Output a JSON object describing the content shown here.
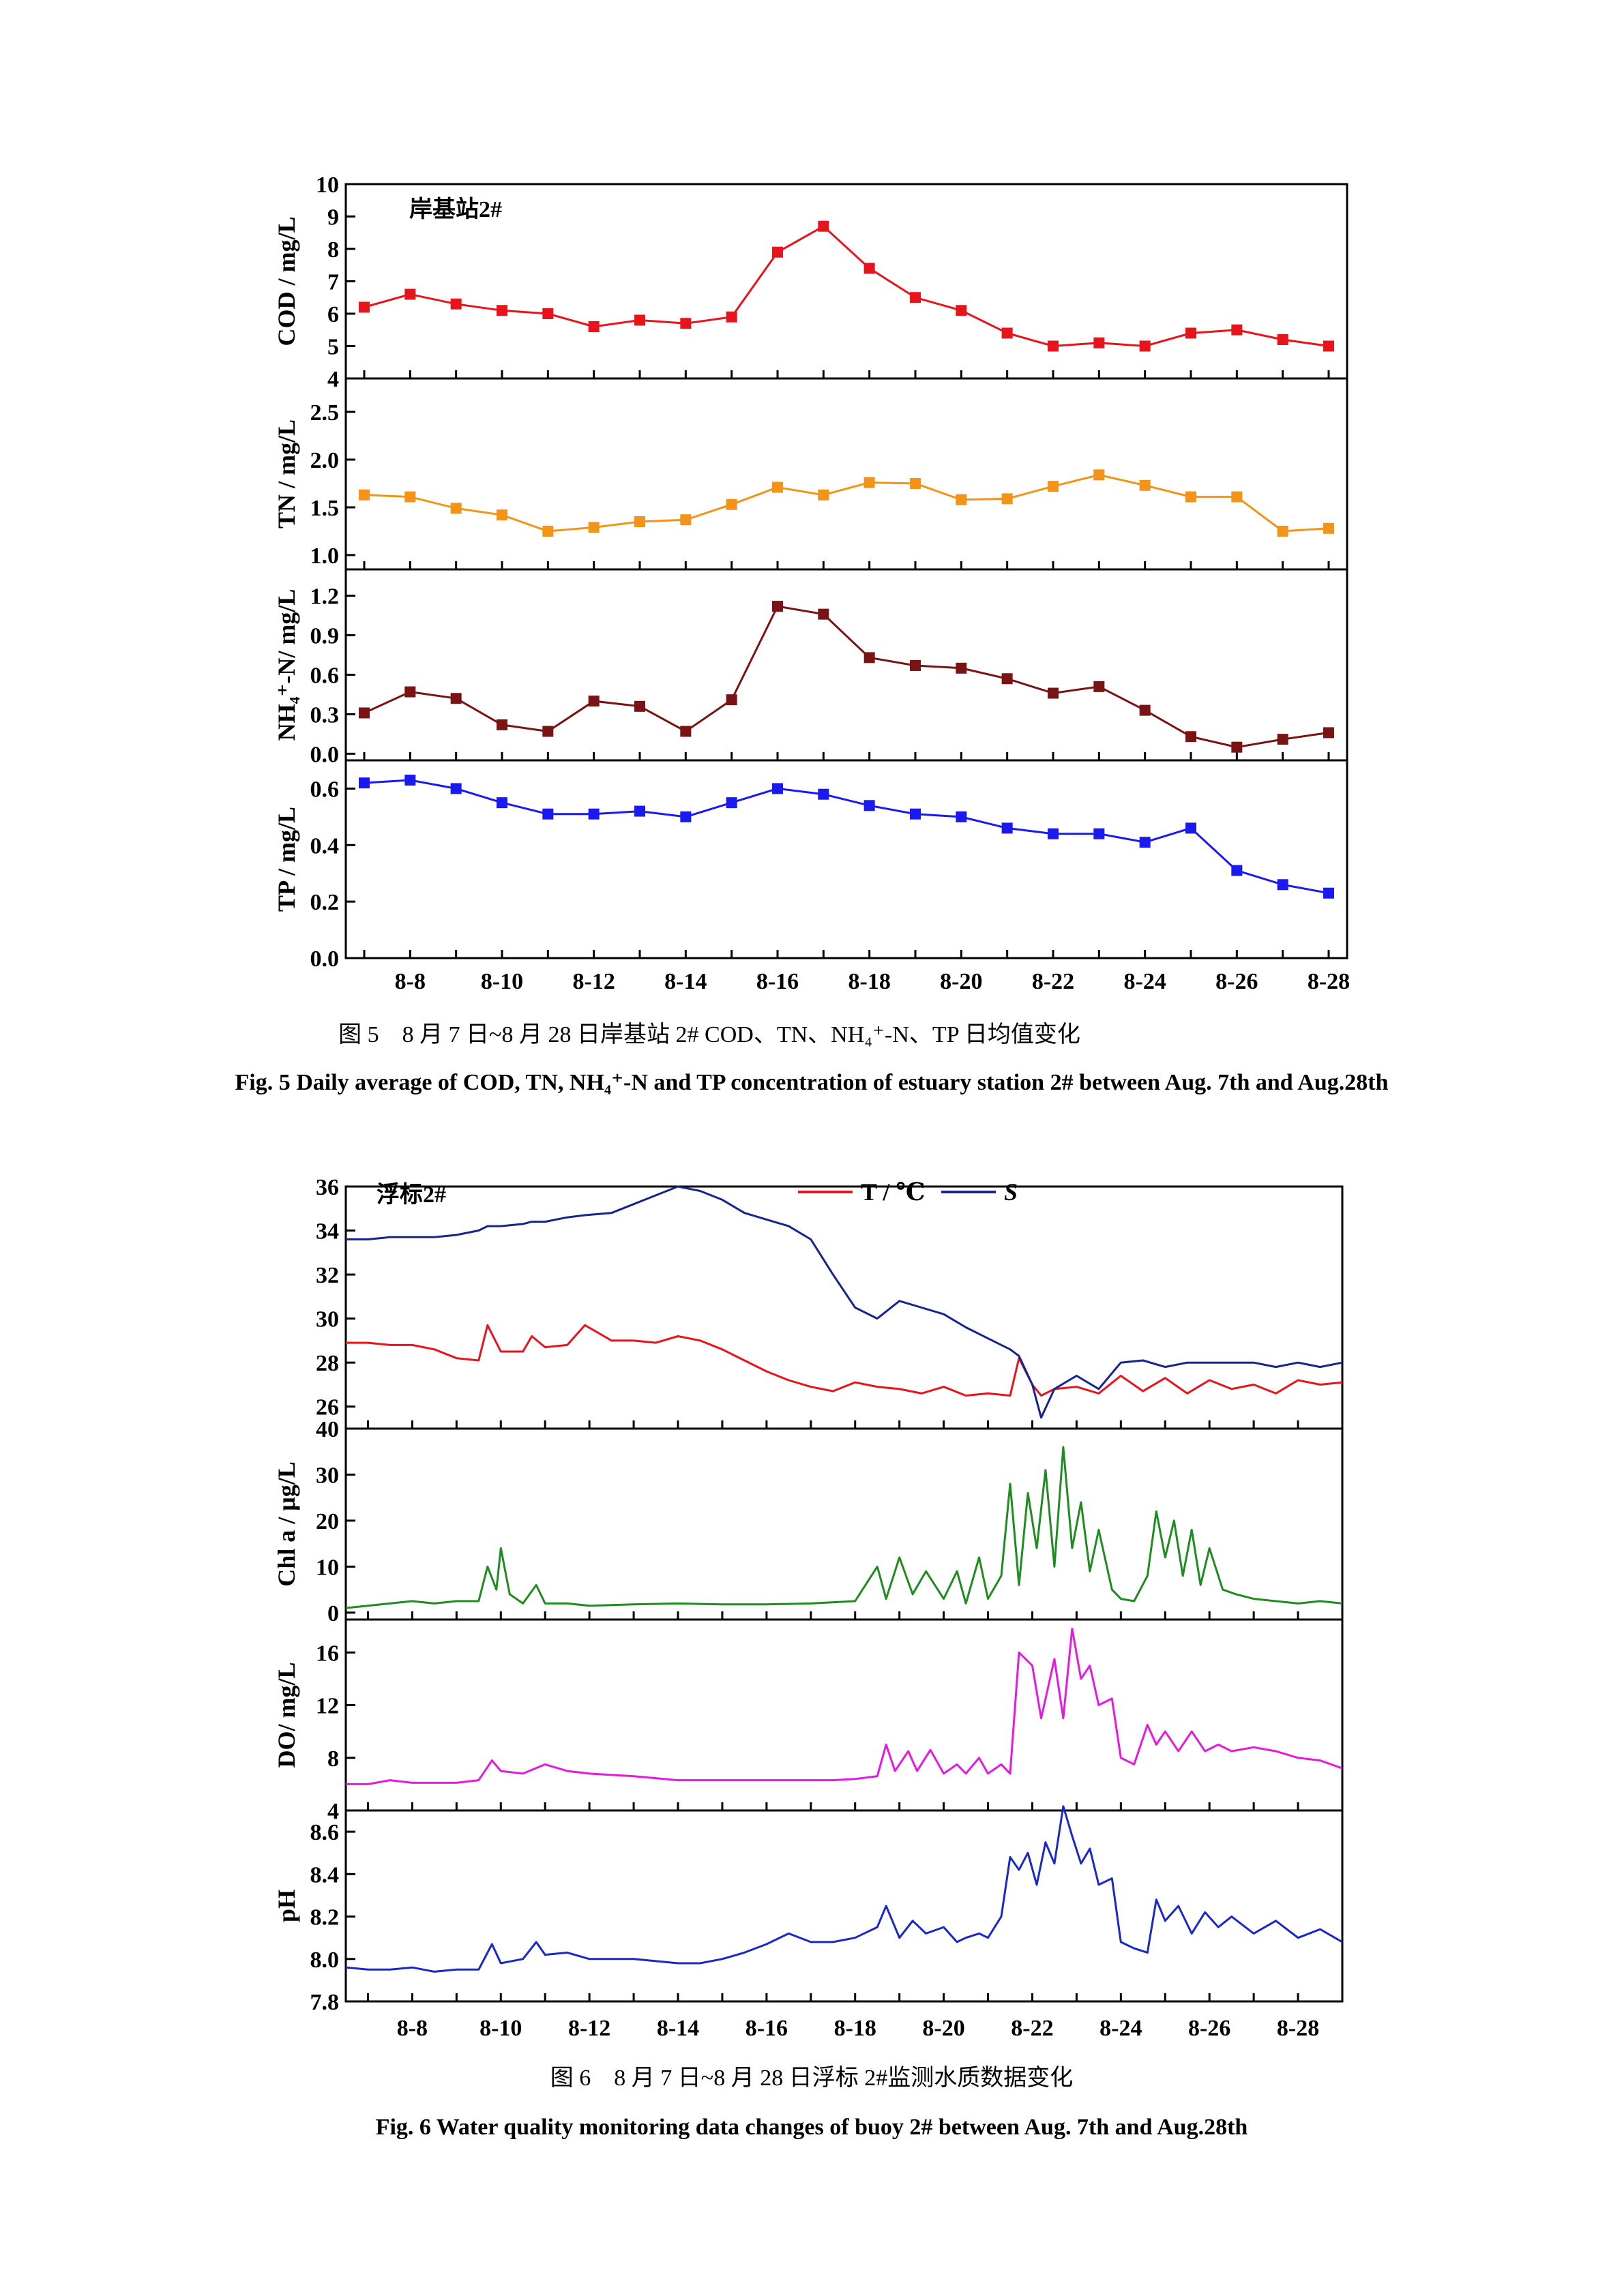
{
  "figure5": {
    "station_label": "岸基站2#",
    "caption_cn": "图 5　8 月 7 日~8 月 28 日岸基站 2# COD、TN、NH₄⁺-N、TP 日均值变化",
    "caption_en": "Fig. 5 Daily average of COD, TN, NH₄⁺-N and TP concentration of estuary station 2# between Aug. 7th and Aug.28th",
    "x_tick_labels": [
      "8-8",
      "8-10",
      "8-12",
      "8-14",
      "8-16",
      "8-18",
      "8-20",
      "8-22",
      "8-24",
      "8-26",
      "8-28"
    ]
  },
  "figure6": {
    "buoy_label": "浮标2#",
    "legend_T": "T / ℃",
    "legend_S": "S",
    "caption_cn": "图 6　8 月 7 日~8 月 28 日浮标 2#监测水质数据变化",
    "caption_en": "Fig. 6 Water quality monitoring data changes of buoy 2# between Aug. 7th and Aug.28th",
    "x_tick_labels": [
      "8-8",
      "8-10",
      "8-12",
      "8-14",
      "8-16",
      "8-18",
      "8-20",
      "8-22",
      "8-24",
      "8-26",
      "8-28"
    ]
  },
  "chart_data": [
    {
      "type": "line",
      "id": "fig5-cod",
      "x": [
        "8-7",
        "8-8",
        "8-9",
        "8-10",
        "8-11",
        "8-12",
        "8-13",
        "8-14",
        "8-15",
        "8-16",
        "8-17",
        "8-18",
        "8-19",
        "8-20",
        "8-21",
        "8-22",
        "8-23",
        "8-24",
        "8-25",
        "8-26",
        "8-27",
        "8-28"
      ],
      "series": [
        {
          "values": [
            6.2,
            6.6,
            6.3,
            6.1,
            6.0,
            5.6,
            5.8,
            5.7,
            5.9,
            7.9,
            8.7,
            7.4,
            6.5,
            6.1,
            5.4,
            5.0,
            5.1,
            5.0,
            5.4,
            5.5,
            5.2,
            5.0
          ],
          "color": "#e8141c"
        }
      ],
      "ylabel": "COD / mg/L",
      "ylim": [
        4,
        10
      ],
      "yticks": [
        4,
        5,
        6,
        7,
        8,
        9,
        10
      ],
      "ytick_labels": [
        "4",
        "5",
        "6",
        "7",
        "8",
        "9",
        "10"
      ]
    },
    {
      "type": "line",
      "id": "fig5-tn",
      "x": [
        "8-7",
        "8-8",
        "8-9",
        "8-10",
        "8-11",
        "8-12",
        "8-13",
        "8-14",
        "8-15",
        "8-16",
        "8-17",
        "8-18",
        "8-19",
        "8-20",
        "8-21",
        "8-22",
        "8-23",
        "8-24",
        "8-25",
        "8-26",
        "8-27",
        "8-28"
      ],
      "series": [
        {
          "values": [
            1.63,
            1.61,
            1.49,
            1.42,
            1.25,
            1.29,
            1.35,
            1.37,
            1.53,
            1.71,
            1.63,
            1.76,
            1.75,
            1.58,
            1.59,
            1.72,
            1.84,
            1.73,
            1.61,
            1.61,
            1.25,
            1.28
          ],
          "color": "#f39318"
        }
      ],
      "ylabel": "TN / mg/L",
      "ylim": [
        0.85,
        2.85
      ],
      "yticks": [
        1.0,
        1.5,
        2.0,
        2.5
      ],
      "ytick_labels": [
        "1.0",
        "1.5",
        "2.0",
        "2.5"
      ]
    },
    {
      "type": "line",
      "id": "fig5-nh4",
      "x": [
        "8-7",
        "8-8",
        "8-9",
        "8-10",
        "8-11",
        "8-12",
        "8-13",
        "8-14",
        "8-15",
        "8-16",
        "8-17",
        "8-18",
        "8-19",
        "8-20",
        "8-21",
        "8-22",
        "8-23",
        "8-24",
        "8-25",
        "8-26",
        "8-27",
        "8-28"
      ],
      "series": [
        {
          "values": [
            0.31,
            0.47,
            0.42,
            0.22,
            0.17,
            0.4,
            0.36,
            0.17,
            0.41,
            1.12,
            1.06,
            0.73,
            0.67,
            0.65,
            0.57,
            0.46,
            0.51,
            0.33,
            0.13,
            0.05,
            0.11,
            0.16
          ],
          "color": "#7a1414"
        }
      ],
      "ylabel": "NH₄⁺-N/ mg/L",
      "ylim": [
        -0.05,
        1.4
      ],
      "yticks": [
        0.0,
        0.3,
        0.6,
        0.9,
        1.2
      ],
      "ytick_labels": [
        "0.0",
        "0.3",
        "0.6",
        "0.9",
        "1.2"
      ]
    },
    {
      "type": "line",
      "id": "fig5-tp",
      "x": [
        "8-7",
        "8-8",
        "8-9",
        "8-10",
        "8-11",
        "8-12",
        "8-13",
        "8-14",
        "8-15",
        "8-16",
        "8-17",
        "8-18",
        "8-19",
        "8-20",
        "8-21",
        "8-22",
        "8-23",
        "8-24",
        "8-25",
        "8-26",
        "8-27",
        "8-28"
      ],
      "series": [
        {
          "values": [
            0.62,
            0.63,
            0.6,
            0.55,
            0.51,
            0.51,
            0.52,
            0.5,
            0.55,
            0.6,
            0.58,
            0.54,
            0.51,
            0.5,
            0.46,
            0.44,
            0.44,
            0.41,
            0.46,
            0.31,
            0.26,
            0.23
          ],
          "color": "#1a1af0"
        }
      ],
      "ylabel": "TP / mg/L",
      "ylim": [
        0.0,
        0.7
      ],
      "yticks": [
        0.0,
        0.2,
        0.4,
        0.6
      ],
      "ytick_labels": [
        "0.0",
        "0.2",
        "0.4",
        "0.6"
      ]
    },
    {
      "type": "line",
      "id": "fig6-ts",
      "x": [
        6.5,
        7.0,
        7.5,
        8.0,
        8.5,
        9.0,
        9.5,
        9.7,
        10.0,
        10.5,
        10.7,
        11.0,
        11.5,
        11.9,
        12.5,
        13.0,
        13.5,
        14.0,
        14.5,
        15.0,
        15.5,
        16.0,
        16.5,
        17.0,
        17.5,
        18.0,
        18.5,
        19.0,
        19.5,
        20.0,
        20.5,
        21.0,
        21.5,
        21.7,
        22.0,
        22.2,
        22.5,
        23.0,
        23.5,
        24.0,
        24.5,
        25.0,
        25.5,
        26.0,
        26.5,
        27.0,
        27.5,
        28.0,
        28.5,
        29.0
      ],
      "series": [
        {
          "name": "T / ℃",
          "values": [
            28.9,
            28.9,
            28.8,
            28.8,
            28.6,
            28.2,
            28.1,
            29.7,
            28.5,
            28.5,
            29.2,
            28.7,
            28.8,
            29.7,
            29.0,
            29.0,
            28.9,
            29.2,
            29.0,
            28.6,
            28.1,
            27.6,
            27.2,
            26.9,
            26.7,
            27.1,
            26.9,
            26.8,
            26.6,
            26.9,
            26.5,
            26.6,
            26.5,
            28.2,
            27.0,
            26.5,
            26.8,
            26.9,
            26.6,
            27.4,
            26.7,
            27.3,
            26.6,
            27.2,
            26.8,
            27.0,
            26.6,
            27.2,
            27.0,
            27.1
          ],
          "color": "#e8141c"
        },
        {
          "name": "S",
          "values": [
            33.6,
            33.6,
            33.7,
            33.7,
            33.7,
            33.8,
            34.0,
            34.2,
            34.2,
            34.3,
            34.4,
            34.4,
            34.6,
            34.7,
            34.8,
            35.2,
            35.6,
            36.0,
            35.8,
            35.4,
            34.8,
            34.5,
            34.2,
            33.6,
            32.0,
            30.5,
            30.0,
            30.8,
            30.5,
            30.2,
            29.6,
            29.1,
            28.6,
            28.3,
            27.0,
            25.5,
            26.8,
            27.4,
            26.8,
            28.0,
            28.1,
            27.8,
            28.0,
            28.0,
            28.0,
            28.0,
            27.8,
            28.0,
            27.8,
            28.0
          ],
          "color": "#17238f"
        }
      ],
      "ylim": [
        25,
        36
      ],
      "yticks": [
        26,
        28,
        30,
        32,
        34,
        36
      ],
      "ytick_labels": [
        "26",
        "28",
        "30",
        "32",
        "34",
        "36"
      ]
    },
    {
      "type": "line",
      "id": "fig6-chla",
      "x": [
        6.5,
        7.0,
        7.5,
        8.0,
        8.5,
        9.0,
        9.5,
        9.7,
        9.9,
        10.0,
        10.2,
        10.5,
        10.8,
        11.0,
        11.5,
        12.0,
        13.0,
        14.0,
        15.0,
        16.0,
        17.0,
        18.0,
        18.5,
        18.7,
        19.0,
        19.3,
        19.6,
        20.0,
        20.3,
        20.5,
        20.8,
        21.0,
        21.3,
        21.5,
        21.7,
        21.9,
        22.1,
        22.3,
        22.5,
        22.7,
        22.9,
        23.1,
        23.3,
        23.5,
        23.8,
        24.0,
        24.3,
        24.6,
        24.8,
        25.0,
        25.2,
        25.4,
        25.6,
        25.8,
        26.0,
        26.3,
        26.6,
        27.0,
        27.5,
        28.0,
        28.5,
        29.0
      ],
      "series": [
        {
          "name": "Chl a",
          "values": [
            1.0,
            1.5,
            2.0,
            2.5,
            2.0,
            2.5,
            2.5,
            10.0,
            5.0,
            14.0,
            4.0,
            2.0,
            6.0,
            2.0,
            2.0,
            1.5,
            1.8,
            2.0,
            1.8,
            1.8,
            2.0,
            2.5,
            10.0,
            3.0,
            12.0,
            4.0,
            9.0,
            3.0,
            9.0,
            2.0,
            12.0,
            3.0,
            8.0,
            28.0,
            6.0,
            26.0,
            14.0,
            31.0,
            10.0,
            36.0,
            14.0,
            24.0,
            9.0,
            18.0,
            5.0,
            3.0,
            2.5,
            8.0,
            22.0,
            12.0,
            20.0,
            8.0,
            18.0,
            6.0,
            14.0,
            5.0,
            4.0,
            3.0,
            2.5,
            2.0,
            2.5,
            2.0
          ],
          "color": "#1e8c1e"
        }
      ],
      "ylabel": "Chl a / μg/L",
      "ylim": [
        -1.5,
        40
      ],
      "yticks": [
        0,
        10,
        20,
        30,
        40
      ],
      "ytick_labels": [
        "0",
        "10",
        "20",
        "30",
        "40"
      ]
    },
    {
      "type": "line",
      "id": "fig6-do",
      "x": [
        6.5,
        7.0,
        7.5,
        8.0,
        8.5,
        9.0,
        9.5,
        9.8,
        10.0,
        10.5,
        11.0,
        11.5,
        12.0,
        13.0,
        14.0,
        15.0,
        16.0,
        17.0,
        17.5,
        18.0,
        18.5,
        18.7,
        18.9,
        19.2,
        19.4,
        19.7,
        20.0,
        20.3,
        20.5,
        20.8,
        21.0,
        21.3,
        21.5,
        21.7,
        22.0,
        22.2,
        22.5,
        22.7,
        22.9,
        23.1,
        23.3,
        23.5,
        23.8,
        24.0,
        24.3,
        24.6,
        24.8,
        25.0,
        25.3,
        25.6,
        25.9,
        26.2,
        26.5,
        27.0,
        27.5,
        28.0,
        28.5,
        29.0
      ],
      "series": [
        {
          "name": "DO",
          "values": [
            6.0,
            6.0,
            6.3,
            6.1,
            6.1,
            6.1,
            6.3,
            7.8,
            7.0,
            6.8,
            7.5,
            7.0,
            6.8,
            6.6,
            6.3,
            6.3,
            6.3,
            6.3,
            6.3,
            6.4,
            6.6,
            9.0,
            7.0,
            8.5,
            7.0,
            8.6,
            6.8,
            7.5,
            6.8,
            8.0,
            6.8,
            7.5,
            6.8,
            16.0,
            15.0,
            11.0,
            15.5,
            11.0,
            17.8,
            14.0,
            15.0,
            12.0,
            12.5,
            8.0,
            7.5,
            10.5,
            9.0,
            10.0,
            8.5,
            10.0,
            8.5,
            9.0,
            8.5,
            8.8,
            8.5,
            8.0,
            7.8,
            7.2
          ],
          "color": "#e619e0"
        }
      ],
      "ylabel": "DO/ mg/L",
      "ylim": [
        4,
        18.5
      ],
      "yticks": [
        4,
        8,
        12,
        16
      ],
      "ytick_labels": [
        "4",
        "8",
        "12",
        "16"
      ]
    },
    {
      "type": "line",
      "id": "fig6-ph",
      "x": [
        6.5,
        7.0,
        7.5,
        8.0,
        8.5,
        9.0,
        9.5,
        9.8,
        10.0,
        10.5,
        10.8,
        11.0,
        11.5,
        12.0,
        13.0,
        14.0,
        14.5,
        15.0,
        15.5,
        16.0,
        16.5,
        17.0,
        17.5,
        18.0,
        18.5,
        18.7,
        19.0,
        19.3,
        19.6,
        20.0,
        20.3,
        20.5,
        20.8,
        21.0,
        21.3,
        21.5,
        21.7,
        21.9,
        22.1,
        22.3,
        22.5,
        22.7,
        22.9,
        23.1,
        23.3,
        23.5,
        23.8,
        24.0,
        24.3,
        24.6,
        24.8,
        25.0,
        25.3,
        25.6,
        25.9,
        26.2,
        26.5,
        27.0,
        27.5,
        28.0,
        28.5,
        29.0
      ],
      "series": [
        {
          "name": "pH",
          "values": [
            7.96,
            7.95,
            7.95,
            7.96,
            7.94,
            7.95,
            7.95,
            8.07,
            7.98,
            8.0,
            8.08,
            8.02,
            8.03,
            8.0,
            8.0,
            7.98,
            7.98,
            8.0,
            8.03,
            8.07,
            8.12,
            8.08,
            8.08,
            8.1,
            8.15,
            8.25,
            8.1,
            8.18,
            8.12,
            8.15,
            8.08,
            8.1,
            8.12,
            8.1,
            8.2,
            8.48,
            8.42,
            8.5,
            8.35,
            8.55,
            8.45,
            8.72,
            8.58,
            8.45,
            8.52,
            8.35,
            8.38,
            8.08,
            8.05,
            8.03,
            8.28,
            8.18,
            8.25,
            8.12,
            8.22,
            8.15,
            8.2,
            8.12,
            8.18,
            8.1,
            8.14,
            8.08
          ],
          "color": "#1a28c8"
        }
      ],
      "ylabel": "pH",
      "ylim": [
        7.8,
        8.7
      ],
      "yticks": [
        7.8,
        8.0,
        8.2,
        8.4,
        8.6
      ],
      "ytick_labels": [
        "7.8",
        "8.0",
        "8.2",
        "8.4",
        "8.6"
      ]
    }
  ]
}
